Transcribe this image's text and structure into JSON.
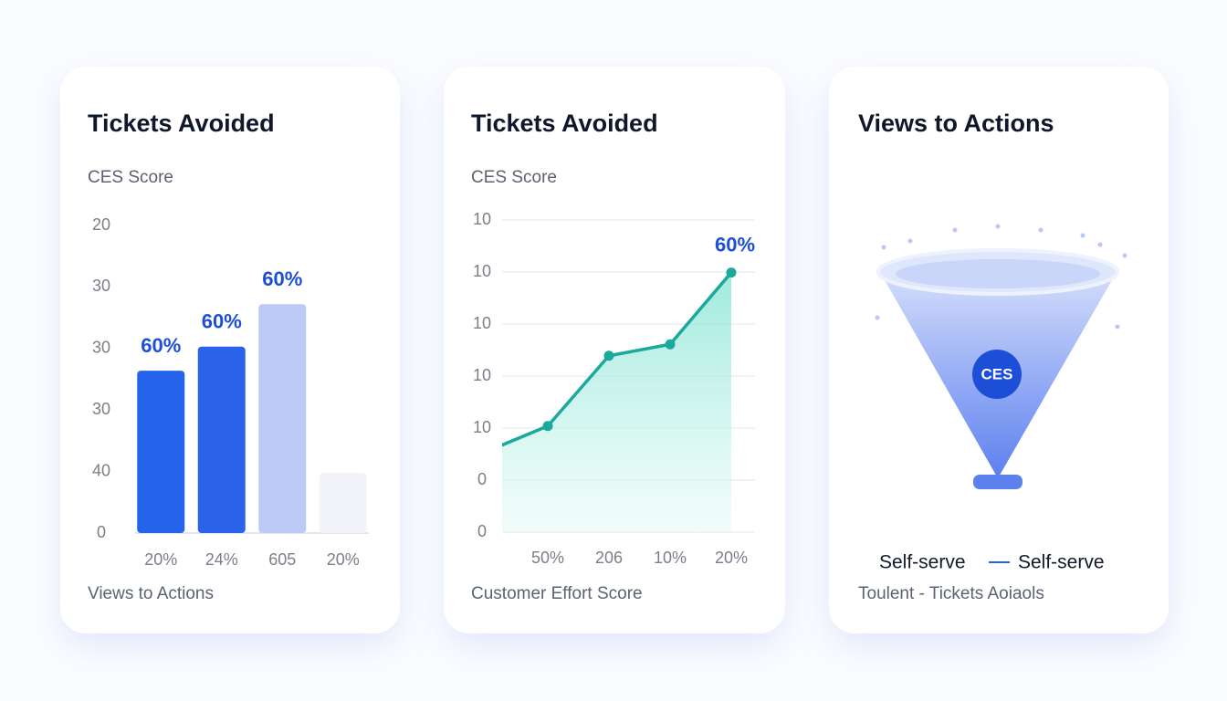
{
  "chart_data": [
    {
      "type": "bar",
      "title": "Tickets Avoided",
      "subtitle": "CES Score",
      "x_label": "Views to Actions",
      "categories": [
        "20%",
        "24%",
        "605",
        "20%"
      ],
      "values": [
        2.64,
        3.03,
        3.72,
        0.98
      ],
      "colors": [
        "#2563eb",
        "#2b62ea",
        "#bccbf6",
        "#f2f4fa"
      ],
      "annotations": [
        "60%",
        "60%",
        "60%"
      ],
      "ylim": [
        0,
        5
      ],
      "yticks": [
        0,
        {
          "value": 1,
          "label": "40"
        },
        {
          "value": 2,
          "label": "30"
        },
        {
          "value": 3,
          "label": "30"
        },
        {
          "value": 4,
          "label": "30"
        },
        {
          "value": 5,
          "label": "20"
        }
      ],
      "grid": false
    },
    {
      "type": "line",
      "title": "Tickets Avoided",
      "subtitle": "CES Score",
      "x_label": "Customer Effort Score",
      "categories": [
        null,
        "50%",
        "206",
        "10%",
        "20%"
      ],
      "values": [
        1.55,
        2.04,
        3.39,
        3.61,
        4.99
      ],
      "color": "#1aa99a",
      "annotations": [
        "60%"
      ],
      "ylim": [
        0,
        6
      ],
      "yticks": [
        0,
        {
          "value": 1,
          "label": "0"
        },
        {
          "value": 2,
          "label": "10"
        },
        {
          "value": 3,
          "label": "10"
        },
        {
          "value": 4,
          "label": "10"
        },
        {
          "value": 5,
          "label": "10"
        },
        {
          "value": 6,
          "label": "10"
        }
      ],
      "grid": true
    }
  ],
  "funnel_card": {
    "title": "Views to Actions",
    "badge": "CES",
    "legend": [
      "Self-serve",
      "Self-serve"
    ],
    "footer": "Toulent - Tickets Aoiaols"
  }
}
